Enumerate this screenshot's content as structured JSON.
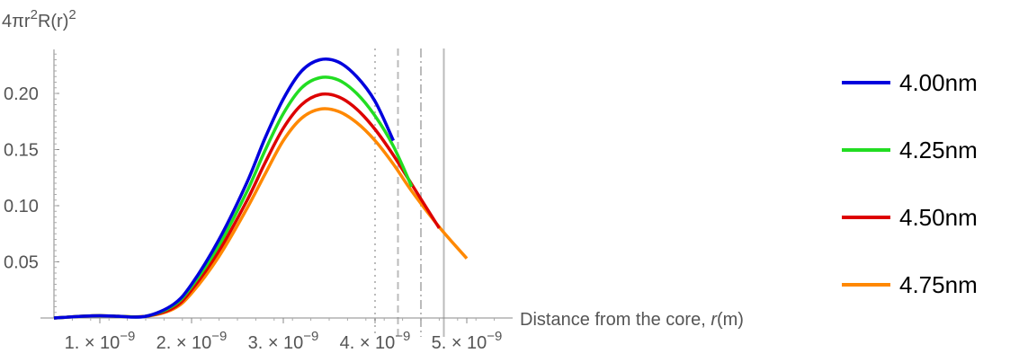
{
  "chart_data": {
    "type": "line",
    "ylabel": "4πr²R(r)²",
    "xlabel": "Distance from the core, r(m)",
    "xlabel_parts": [
      "Distance  from  the  core, ",
      "r",
      "(m)"
    ],
    "xlim": [
      5e-10,
      5.5e-09
    ],
    "ylim": [
      0,
      0.24
    ],
    "x_ticks": [
      {
        "value": 1e-09,
        "mantissa": "1.",
        "exponent": "−9"
      },
      {
        "value": 2e-09,
        "mantissa": "2.",
        "exponent": "−9"
      },
      {
        "value": 3e-09,
        "mantissa": "3.",
        "exponent": "−9"
      },
      {
        "value": 4e-09,
        "mantissa": "4.",
        "exponent": "−9"
      },
      {
        "value": 5e-09,
        "mantissa": "5.",
        "exponent": "−9"
      }
    ],
    "times_glyph": "×",
    "base": "10",
    "y_ticks": [
      {
        "value": 0.05,
        "label": "0.05"
      },
      {
        "value": 0.1,
        "label": "0.10"
      },
      {
        "value": 0.15,
        "label": "0.15"
      },
      {
        "value": 0.2,
        "label": "0.20"
      }
    ],
    "vertical_lines": [
      {
        "x": 4e-09,
        "style": "dotted",
        "color": "#bbbbbb"
      },
      {
        "x": 4.25e-09,
        "style": "dashed",
        "color": "#bbbbbb"
      },
      {
        "x": 4.5e-09,
        "style": "dashdot",
        "color": "#bbbbbb"
      },
      {
        "x": 4.75e-09,
        "style": "solid",
        "color": "#bbbbbb"
      }
    ],
    "series": [
      {
        "name": "4.00nm",
        "color": "#0000dd",
        "x": [
          5e-10,
          6e-10,
          8e-10,
          1e-09,
          1.2e-09,
          1.5e-09,
          1.8e-09,
          2e-09,
          2.3e-09,
          2.6e-09,
          2.8e-09,
          3e-09,
          3.2e-09,
          3.4e-09,
          3.6e-09,
          3.8e-09,
          4e-09,
          4.2e-09
        ],
        "y": [
          0,
          0.0005,
          0.0015,
          0.002,
          0.0015,
          0.0015,
          0.012,
          0.03,
          0.07,
          0.12,
          0.16,
          0.195,
          0.22,
          0.23,
          0.228,
          0.215,
          0.193,
          0.158
        ]
      },
      {
        "name": "4.25nm",
        "color": "#22dd22",
        "x": [
          5e-10,
          6e-10,
          8e-10,
          1e-09,
          1.2e-09,
          1.5e-09,
          1.8e-09,
          2e-09,
          2.3e-09,
          2.6e-09,
          2.8e-09,
          3e-09,
          3.2e-09,
          3.4e-09,
          3.6e-09,
          3.8e-09,
          4e-09,
          4.2e-09,
          4.4e-09
        ],
        "y": [
          0,
          0.0005,
          0.0015,
          0.002,
          0.0015,
          0.0015,
          0.011,
          0.028,
          0.065,
          0.112,
          0.149,
          0.182,
          0.205,
          0.214,
          0.212,
          0.2,
          0.18,
          0.153,
          0.117
        ]
      },
      {
        "name": "4.50nm",
        "color": "#dd0000",
        "x": [
          5e-10,
          6e-10,
          8e-10,
          1e-09,
          1.2e-09,
          1.5e-09,
          1.8e-09,
          2e-09,
          2.3e-09,
          2.6e-09,
          2.8e-09,
          3e-09,
          3.2e-09,
          3.4e-09,
          3.6e-09,
          3.8e-09,
          4e-09,
          4.2e-09,
          4.4e-09,
          4.7e-09
        ],
        "y": [
          0,
          0.0005,
          0.0015,
          0.002,
          0.0015,
          0.0015,
          0.009,
          0.025,
          0.06,
          0.104,
          0.138,
          0.169,
          0.19,
          0.199,
          0.197,
          0.186,
          0.168,
          0.145,
          0.119,
          0.08
        ]
      },
      {
        "name": "4.75nm",
        "color": "#ff8800",
        "x": [
          5e-10,
          6e-10,
          8e-10,
          1e-09,
          1.2e-09,
          1.5e-09,
          1.8e-09,
          2e-09,
          2.3e-09,
          2.6e-09,
          2.8e-09,
          3e-09,
          3.2e-09,
          3.4e-09,
          3.6e-09,
          3.8e-09,
          4e-09,
          4.2e-09,
          4.4e-09,
          4.7e-09,
          5e-09
        ],
        "y": [
          0,
          0.0005,
          0.0015,
          0.002,
          0.0015,
          0.0015,
          0.008,
          0.022,
          0.055,
          0.097,
          0.128,
          0.158,
          0.178,
          0.186,
          0.184,
          0.174,
          0.158,
          0.137,
          0.113,
          0.081,
          0.053
        ]
      }
    ],
    "legend": {
      "position": "right"
    }
  }
}
